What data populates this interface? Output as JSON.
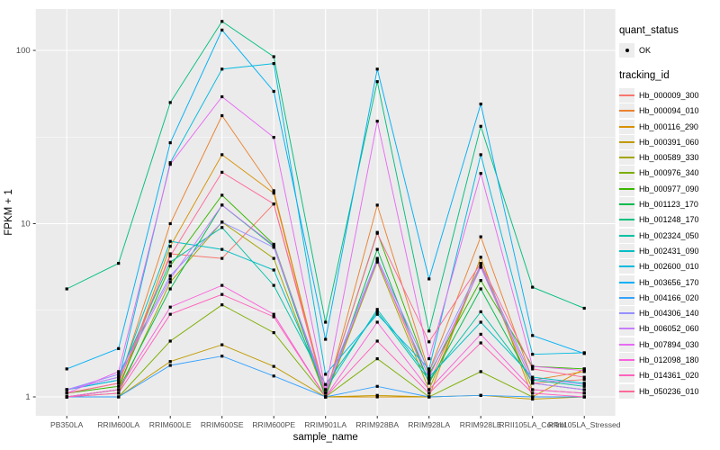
{
  "figure": {
    "panel_bg": "#EBEBEB",
    "grid_color": "#FFFFFF",
    "tick_color": "#333333",
    "tick_label_color": "#4D4D4D",
    "axis_title_color": "#000000",
    "point_color": "#000000"
  },
  "legend": {
    "quant_title": "quant_status",
    "quant_items": [
      {
        "label": "OK",
        "shape": "point"
      }
    ],
    "tracking_title": "tracking_id"
  },
  "chart_data": {
    "type": "line",
    "title": "",
    "xlabel": "sample_name",
    "ylabel": "FPKM + 1",
    "y_scale": "log10",
    "y_ticks": [
      1,
      10,
      100
    ],
    "y_minor_ticks": [
      3.162,
      31.62
    ],
    "ylim": [
      0.78,
      174
    ],
    "grid": true,
    "legend_position": "right",
    "categories": [
      "PB350LA",
      "RRIM600LA",
      "RRIM600LE",
      "RRIM600SE",
      "RRIM600PE",
      "RRIM901LA",
      "RRIM928BA",
      "RRIM928LA",
      "RRIM928LE",
      "RRII105LA_Control",
      "RRII105LA_Stressed"
    ],
    "series": [
      {
        "name": "Hb_000009_300",
        "color": "#F8766D",
        "values": [
          1.0,
          1.1,
          6.7,
          6.3,
          13.0,
          1.0,
          6.2,
          1.2,
          5.7,
          1.2,
          1.26
        ]
      },
      {
        "name": "Hb_000094_010",
        "color": "#EA8331",
        "values": [
          1.05,
          1.2,
          10.0,
          42.0,
          15.5,
          1.0,
          12.8,
          1.4,
          8.4,
          1.25,
          1.4
        ]
      },
      {
        "name": "Hb_000116_290",
        "color": "#D89000",
        "values": [
          1.0,
          1.1,
          7.4,
          25.0,
          15.0,
          1.0,
          1.0,
          1.0,
          6.4,
          1.0,
          1.45
        ]
      },
      {
        "name": "Hb_000391_060",
        "color": "#C09B00",
        "values": [
          1.0,
          1.0,
          1.6,
          2.0,
          1.5,
          1.0,
          1.02,
          1.0,
          1.02,
          0.97,
          1.0
        ]
      },
      {
        "name": "Hb_000589_330",
        "color": "#A3A500",
        "values": [
          1.0,
          1.05,
          4.6,
          10.2,
          6.3,
          1.0,
          6.0,
          1.1,
          5.8,
          1.1,
          1.05
        ]
      },
      {
        "name": "Hb_000976_340",
        "color": "#7CAE00",
        "values": [
          1.0,
          1.0,
          2.1,
          3.4,
          2.35,
          1.0,
          1.66,
          1.0,
          1.4,
          1.0,
          1.0
        ]
      },
      {
        "name": "Hb_000977_090",
        "color": "#39B600",
        "values": [
          1.05,
          1.15,
          5.7,
          14.6,
          7.6,
          1.05,
          8.9,
          1.35,
          4.7,
          1.5,
          1.45
        ]
      },
      {
        "name": "Hb_001123_170",
        "color": "#00BB4E",
        "values": [
          1.0,
          1.1,
          4.2,
          12.8,
          7.4,
          1.0,
          7.1,
          1.2,
          4.2,
          1.2,
          1.1
        ]
      },
      {
        "name": "Hb_001248_170",
        "color": "#00BF7D",
        "values": [
          4.2,
          5.9,
          50.0,
          147.0,
          92.0,
          2.7,
          66.0,
          2.4,
          36.5,
          4.3,
          3.25
        ]
      },
      {
        "name": "Hb_002324_050",
        "color": "#00C1A3",
        "values": [
          1.1,
          1.3,
          6.0,
          9.5,
          4.4,
          1.18,
          3.1,
          1.25,
          3.1,
          1.25,
          1.15
        ]
      },
      {
        "name": "Hb_002431_090",
        "color": "#00BFC4",
        "values": [
          1.1,
          1.25,
          7.9,
          7.1,
          5.4,
          1.1,
          3.2,
          1.3,
          2.7,
          1.3,
          1.2
        ]
      },
      {
        "name": "Hb_002600_010",
        "color": "#00BAE0",
        "values": [
          1.1,
          1.25,
          22.5,
          78.0,
          84.0,
          1.35,
          3.0,
          1.45,
          25.0,
          1.76,
          1.8
        ]
      },
      {
        "name": "Hb_003656_170",
        "color": "#00B0F6",
        "values": [
          1.45,
          1.9,
          29.3,
          131.0,
          58.0,
          2.15,
          78.0,
          4.8,
          49.0,
          2.26,
          1.78
        ]
      },
      {
        "name": "Hb_004166_020",
        "color": "#35A2FF",
        "values": [
          1.0,
          1.0,
          1.52,
          1.72,
          1.32,
          1.0,
          1.15,
          1.0,
          1.02,
          1.0,
          1.0
        ]
      },
      {
        "name": "Hb_004306_140",
        "color": "#9590FF",
        "values": [
          1.1,
          1.35,
          5.0,
          10.2,
          7.3,
          1.1,
          6.3,
          1.4,
          5.8,
          1.27,
          1.18
        ]
      },
      {
        "name": "Hb_006052_060",
        "color": "#C77CFF",
        "values": [
          1.1,
          1.3,
          4.8,
          12.8,
          7.5,
          1.05,
          6.1,
          1.3,
          5.6,
          1.2,
          1.1
        ]
      },
      {
        "name": "Hb_007894_030",
        "color": "#E76BF3",
        "values": [
          1.05,
          1.4,
          22.0,
          54.0,
          31.5,
          1.1,
          39.0,
          1.66,
          19.5,
          1.5,
          1.42
        ]
      },
      {
        "name": "Hb_012098_180",
        "color": "#FA62DB",
        "values": [
          1.0,
          1.1,
          3.3,
          4.4,
          3.0,
          1.0,
          2.7,
          1.1,
          2.3,
          1.1,
          1.05
        ]
      },
      {
        "name": "Hb_014361_020",
        "color": "#FF62BC",
        "values": [
          1.0,
          1.05,
          3.0,
          3.9,
          2.9,
          1.0,
          2.1,
          1.05,
          2.05,
          1.05,
          1.0
        ]
      },
      {
        "name": "Hb_050236_010",
        "color": "#FF6A98",
        "values": [
          1.05,
          1.2,
          6.5,
          19.8,
          13.0,
          1.05,
          8.8,
          2.08,
          5.9,
          1.45,
          1.3
        ]
      }
    ]
  }
}
